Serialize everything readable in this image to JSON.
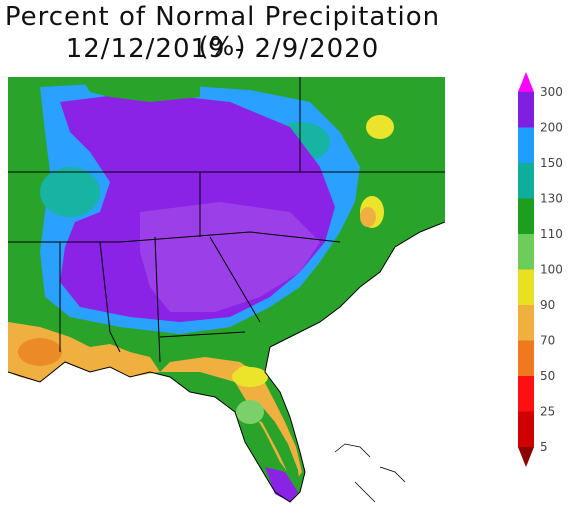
{
  "title": "Percent of Normal Precipitation (%)",
  "subtitle": "12/12/2019 - 2/9/2020",
  "legend": {
    "ticks": [
      "300",
      "200",
      "150",
      "130",
      "110",
      "100",
      "90",
      "70",
      "50",
      "25",
      "5"
    ],
    "colors": [
      "#ff00ff",
      "#7f1fe0",
      "#1e9fff",
      "#0fae9c",
      "#1e9e1e",
      "#6ccd5a",
      "#e8e020",
      "#f0b040",
      "#f07820",
      "#ff1010",
      "#d00000",
      "#8b0000"
    ]
  },
  "map": {
    "region": "Southeastern United States",
    "colors": {
      "purple": "#8a23e6",
      "violet": "#9b3fe8",
      "blue": "#2aa0ff",
      "teal": "#17b3a3",
      "green": "#2aa32a",
      "lightgreen": "#7bd06a",
      "yellow": "#ece42a",
      "orange": "#f0b040",
      "darkorange": "#ec8a28",
      "water": "#ffffff",
      "border": "#000000"
    }
  }
}
